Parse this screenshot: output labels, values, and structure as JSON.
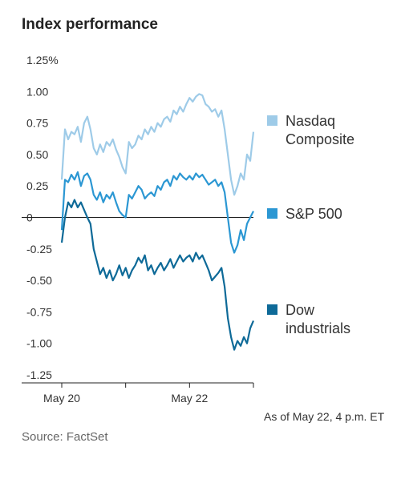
{
  "header": {
    "title": "Index performance"
  },
  "footer": {
    "as_of": "As of May 22, 4 p.m. ET",
    "source": "Source: FactSet"
  },
  "chart_data": {
    "type": "line",
    "title": "Index performance",
    "x_labels": [
      "May 20",
      "May 22"
    ],
    "y_ticks": [
      "1.25%",
      "1.00",
      "0.75",
      "0.50",
      "0.25",
      "0",
      "-0.25",
      "-0.50",
      "-0.75",
      "-1.00",
      "-1.25"
    ],
    "ylim": [
      -1.25,
      1.25
    ],
    "x_range": [
      0,
      3
    ],
    "grid": false,
    "zero_line": true,
    "legend_position": "right",
    "series": [
      {
        "name": "Nasdaq\nComposite",
        "color": "#9ecbe8",
        "x": [
          0,
          0.05,
          0.1,
          0.15,
          0.2,
          0.25,
          0.3,
          0.35,
          0.4,
          0.45,
          0.5,
          0.55,
          0.6,
          0.65,
          0.7,
          0.75,
          0.8,
          0.85,
          0.9,
          0.95,
          1.0,
          1.05,
          1.1,
          1.15,
          1.2,
          1.25,
          1.3,
          1.35,
          1.4,
          1.45,
          1.5,
          1.55,
          1.6,
          1.65,
          1.7,
          1.75,
          1.8,
          1.85,
          1.9,
          1.95,
          2.0,
          2.05,
          2.1,
          2.15,
          2.2,
          2.25,
          2.3,
          2.35,
          2.4,
          2.45,
          2.5,
          2.55,
          2.6,
          2.65,
          2.7,
          2.75,
          2.8,
          2.85,
          2.9,
          2.95,
          3.0
        ],
        "values": [
          0.3,
          0.7,
          0.62,
          0.68,
          0.66,
          0.72,
          0.6,
          0.75,
          0.8,
          0.7,
          0.55,
          0.5,
          0.58,
          0.52,
          0.6,
          0.57,
          0.62,
          0.54,
          0.48,
          0.4,
          0.35,
          0.6,
          0.55,
          0.58,
          0.65,
          0.62,
          0.7,
          0.66,
          0.72,
          0.68,
          0.75,
          0.72,
          0.78,
          0.8,
          0.76,
          0.85,
          0.82,
          0.88,
          0.84,
          0.9,
          0.95,
          0.92,
          0.96,
          0.98,
          0.97,
          0.9,
          0.88,
          0.84,
          0.86,
          0.8,
          0.85,
          0.7,
          0.5,
          0.3,
          0.18,
          0.25,
          0.35,
          0.3,
          0.5,
          0.45,
          0.68
        ]
      },
      {
        "name": "S&P 500",
        "color": "#2b97d3",
        "x": [
          0,
          0.05,
          0.1,
          0.15,
          0.2,
          0.25,
          0.3,
          0.35,
          0.4,
          0.45,
          0.5,
          0.55,
          0.6,
          0.65,
          0.7,
          0.75,
          0.8,
          0.85,
          0.9,
          0.95,
          1.0,
          1.05,
          1.1,
          1.15,
          1.2,
          1.25,
          1.3,
          1.35,
          1.4,
          1.45,
          1.5,
          1.55,
          1.6,
          1.65,
          1.7,
          1.75,
          1.8,
          1.85,
          1.9,
          1.95,
          2.0,
          2.05,
          2.1,
          2.15,
          2.2,
          2.25,
          2.3,
          2.35,
          2.4,
          2.45,
          2.5,
          2.55,
          2.6,
          2.65,
          2.7,
          2.75,
          2.8,
          2.85,
          2.9,
          2.95,
          3.0
        ],
        "values": [
          -0.1,
          0.3,
          0.28,
          0.34,
          0.3,
          0.36,
          0.25,
          0.33,
          0.35,
          0.3,
          0.18,
          0.14,
          0.2,
          0.12,
          0.18,
          0.15,
          0.2,
          0.12,
          0.05,
          0.02,
          0.0,
          0.18,
          0.15,
          0.2,
          0.25,
          0.22,
          0.15,
          0.18,
          0.2,
          0.17,
          0.25,
          0.22,
          0.28,
          0.3,
          0.25,
          0.33,
          0.3,
          0.35,
          0.32,
          0.3,
          0.33,
          0.3,
          0.35,
          0.32,
          0.34,
          0.3,
          0.26,
          0.28,
          0.3,
          0.25,
          0.28,
          0.2,
          0.0,
          -0.2,
          -0.28,
          -0.22,
          -0.1,
          -0.18,
          -0.05,
          0.0,
          0.05
        ]
      },
      {
        "name": "Dow\nindustrials",
        "color": "#0e6a98",
        "x": [
          0,
          0.05,
          0.1,
          0.15,
          0.2,
          0.25,
          0.3,
          0.35,
          0.4,
          0.45,
          0.5,
          0.55,
          0.6,
          0.65,
          0.7,
          0.75,
          0.8,
          0.85,
          0.9,
          0.95,
          1.0,
          1.05,
          1.1,
          1.15,
          1.2,
          1.25,
          1.3,
          1.35,
          1.4,
          1.45,
          1.5,
          1.55,
          1.6,
          1.65,
          1.7,
          1.75,
          1.8,
          1.85,
          1.9,
          1.95,
          2.0,
          2.05,
          2.1,
          2.15,
          2.2,
          2.25,
          2.3,
          2.35,
          2.4,
          2.45,
          2.5,
          2.55,
          2.6,
          2.65,
          2.7,
          2.75,
          2.8,
          2.85,
          2.9,
          2.95,
          3.0
        ],
        "values": [
          -0.2,
          0.0,
          0.12,
          0.08,
          0.14,
          0.08,
          0.12,
          0.06,
          0.0,
          -0.05,
          -0.25,
          -0.35,
          -0.45,
          -0.4,
          -0.48,
          -0.42,
          -0.5,
          -0.45,
          -0.38,
          -0.46,
          -0.4,
          -0.48,
          -0.42,
          -0.38,
          -0.32,
          -0.36,
          -0.3,
          -0.42,
          -0.38,
          -0.45,
          -0.4,
          -0.36,
          -0.42,
          -0.38,
          -0.33,
          -0.4,
          -0.35,
          -0.3,
          -0.35,
          -0.32,
          -0.3,
          -0.35,
          -0.28,
          -0.33,
          -0.3,
          -0.36,
          -0.42,
          -0.5,
          -0.47,
          -0.44,
          -0.4,
          -0.55,
          -0.8,
          -0.95,
          -1.05,
          -0.98,
          -1.02,
          -0.95,
          -1.0,
          -0.88,
          -0.82
        ]
      }
    ]
  }
}
